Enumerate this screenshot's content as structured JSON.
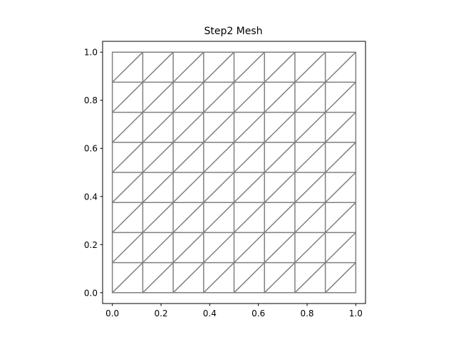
{
  "chart_data": {
    "type": "mesh",
    "title": "Step2 Mesh",
    "xlabel": "",
    "ylabel": "",
    "xlim": [
      -0.04,
      1.04
    ],
    "ylim": [
      -0.045,
      1.045
    ],
    "divisions": 8,
    "diagonal_direction": "bottom-left to top-right",
    "xticks": [
      0.0,
      0.2,
      0.4,
      0.6,
      0.8,
      1.0
    ],
    "xtick_labels": [
      "0.0",
      "0.2",
      "0.4",
      "0.6",
      "0.8",
      "1.0"
    ],
    "yticks": [
      0.0,
      0.2,
      0.4,
      0.6,
      0.8,
      1.0
    ],
    "ytick_labels": [
      "0.0",
      "0.2",
      "0.4",
      "0.6",
      "0.8",
      "1.0"
    ],
    "grid": false,
    "line_color": "#808080"
  }
}
